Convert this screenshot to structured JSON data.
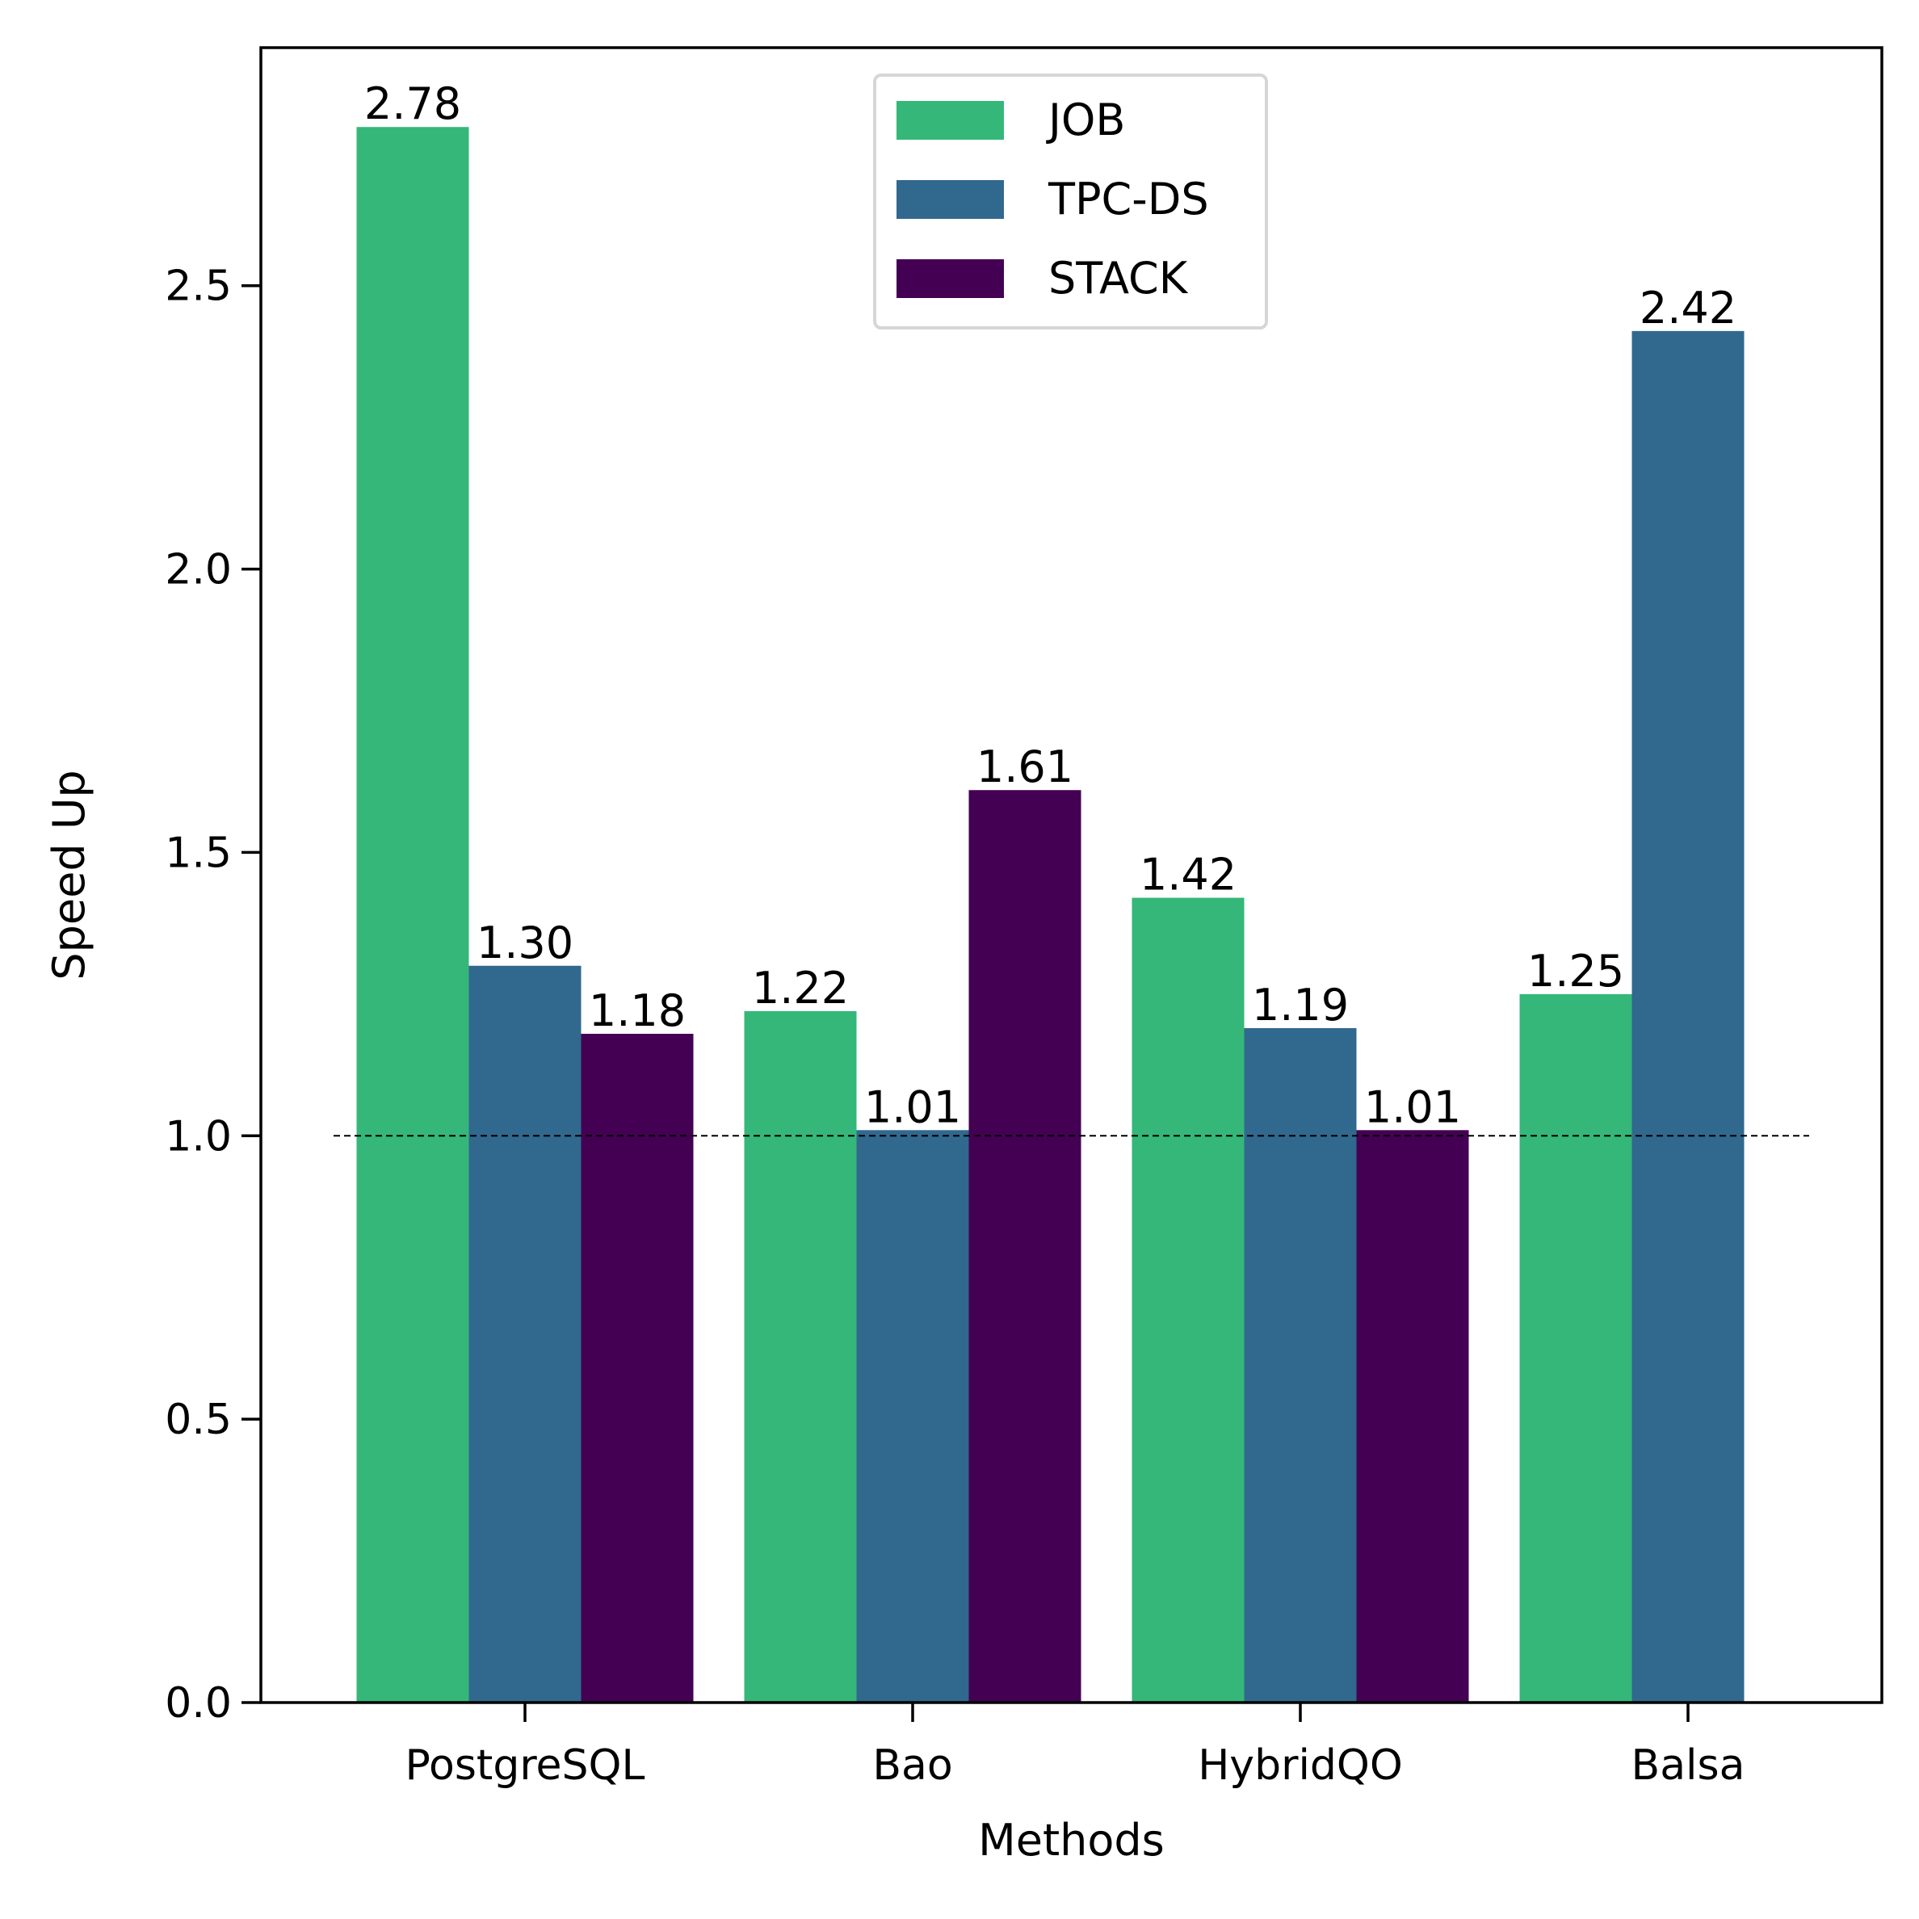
{
  "chart_data": {
    "type": "bar",
    "title": "",
    "xlabel": "Methods",
    "ylabel": "Speed Up",
    "categories": [
      "PostgreSQL",
      "Bao",
      "HybridQO",
      "Balsa"
    ],
    "series": [
      {
        "name": "JOB",
        "color": "#35b779",
        "values": [
          2.78,
          1.22,
          1.42,
          1.25
        ],
        "labels": [
          "2.78",
          "1.22",
          "1.42",
          "1.25"
        ]
      },
      {
        "name": "TPC-DS",
        "color": "#31688e",
        "values": [
          1.3,
          1.01,
          1.19,
          2.42
        ],
        "labels": [
          "1.30",
          "1.01",
          "1.19",
          "2.42"
        ]
      },
      {
        "name": "STACK",
        "color": "#440154",
        "values": [
          1.18,
          1.61,
          1.01,
          null
        ],
        "labels": [
          "1.18",
          "1.61",
          "1.01",
          null
        ]
      }
    ],
    "ylim": [
      0,
      2.92
    ],
    "yticks": [
      0.0,
      0.5,
      1.0,
      1.5,
      2.0,
      2.5
    ],
    "ytick_labels": [
      "0.0",
      "0.5",
      "1.0",
      "1.5",
      "2.0",
      "2.5"
    ],
    "reference_line": {
      "y": 1.0,
      "style": "dashed",
      "color": "#000000"
    },
    "legend": {
      "position": "upper-center"
    },
    "grid": false
  }
}
